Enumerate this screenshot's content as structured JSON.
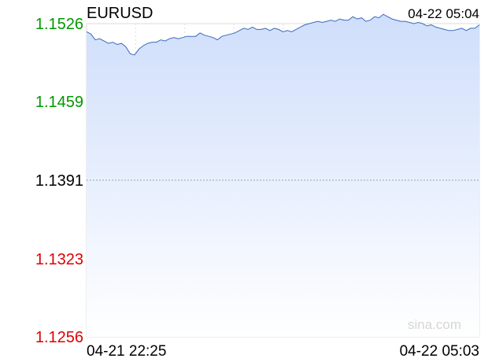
{
  "chart_data": {
    "type": "area",
    "symbol": "EURUSD",
    "timestamp": "04-22 05:04",
    "x_start_label": "04-21 22:25",
    "x_end_label": "04-22 05:03",
    "watermark": "sina.com",
    "y_ticks": [
      {
        "label": "1.1526",
        "value": 1.1526,
        "color": "#009900"
      },
      {
        "label": "1.1459",
        "value": 1.1459,
        "color": "#009900"
      },
      {
        "label": "1.1391",
        "value": 1.1391,
        "color": "#000000"
      },
      {
        "label": "1.1323",
        "value": 1.1323,
        "color": "#dd0000"
      },
      {
        "label": "1.1256",
        "value": 1.1256,
        "color": "#dd0000"
      }
    ],
    "reference_value": 1.1391,
    "ylim": [
      1.1256,
      1.1526
    ],
    "colors": {
      "line": "#3a6bb8",
      "fill_top": "#cfdefb",
      "fill_bottom": "#ffffff",
      "grid": "#dddddd",
      "reference": "#9aa0c0"
    },
    "series": [
      {
        "values": [
          1.1519,
          1.1517,
          1.1512,
          1.1513,
          1.1511,
          1.1509,
          1.151,
          1.1508,
          1.1509,
          1.1506,
          1.15,
          1.1499,
          1.1504,
          1.1507,
          1.1509,
          1.151,
          1.151,
          1.1512,
          1.1511,
          1.1513,
          1.1514,
          1.1513,
          1.1514,
          1.1515,
          1.1515,
          1.1515,
          1.1518,
          1.1516,
          1.1515,
          1.1514,
          1.1512,
          1.1515,
          1.1516,
          1.1517,
          1.1518,
          1.152,
          1.1522,
          1.1521,
          1.1523,
          1.1521,
          1.1521,
          1.1522,
          1.152,
          1.1522,
          1.1521,
          1.1519,
          1.152,
          1.1519,
          1.1521,
          1.1523,
          1.1525,
          1.1526,
          1.1527,
          1.1528,
          1.1527,
          1.1528,
          1.1529,
          1.1528,
          1.153,
          1.1529,
          1.1529,
          1.1532,
          1.153,
          1.1531,
          1.1528,
          1.1529,
          1.1532,
          1.1531,
          1.1534,
          1.1532,
          1.153,
          1.1529,
          1.1528,
          1.1528,
          1.1527,
          1.1526,
          1.1527,
          1.1526,
          1.1524,
          1.1525,
          1.1523,
          1.1522,
          1.1521,
          1.152,
          1.152,
          1.1521,
          1.1522,
          1.152,
          1.1522,
          1.1522,
          1.1525
        ]
      }
    ]
  }
}
